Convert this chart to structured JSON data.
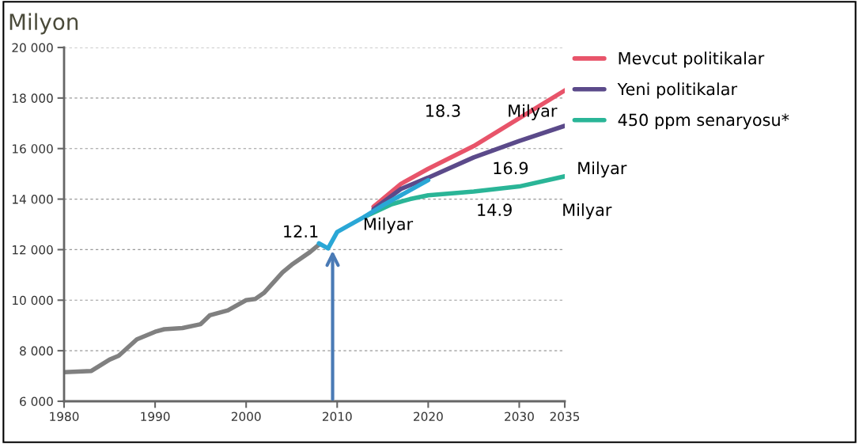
{
  "chart_data": {
    "type": "line",
    "ylabel": "Milyon",
    "xlim": [
      1980,
      2035
    ],
    "xticks": [
      1980,
      1990,
      2000,
      2010,
      2020,
      2030,
      2035
    ],
    "ylim": [
      6000,
      20000
    ],
    "yticks": [
      {
        "value": 6000,
        "label": "6 000"
      },
      {
        "value": 8000,
        "label": "8 000"
      },
      {
        "value": 10000,
        "label": "10 000"
      },
      {
        "value": 12000,
        "label": "12 000"
      },
      {
        "value": 14000,
        "label": "14 000"
      },
      {
        "value": 16000,
        "label": "16 000"
      },
      {
        "value": 18000,
        "label": "18 000"
      },
      {
        "value": 20000,
        "label": "20 000"
      }
    ],
    "grid": "y",
    "legend": "top right",
    "series": [
      {
        "color": "#808080",
        "x": [
          1980,
          1983,
          1985,
          1986,
          1988,
          1990,
          1991,
          1993,
          1995,
          1996,
          1998,
          2000,
          2001,
          2002,
          2004,
          2005,
          2007,
          2008
        ],
        "values": [
          7150,
          7200,
          7650,
          7800,
          8450,
          8750,
          8850,
          8900,
          9050,
          9400,
          9600,
          10000,
          10050,
          10300,
          11100,
          11400,
          11900,
          12200
        ]
      },
      {
        "name": "Mevcut politikalar",
        "color": "#e8546a",
        "x": [
          2014,
          2017,
          2020,
          2025,
          2030,
          2035
        ],
        "values": [
          13700,
          14600,
          15200,
          16100,
          17200,
          18300
        ]
      },
      {
        "name": "Yeni politikalar",
        "color": "#5b4a8a",
        "x": [
          2014,
          2017,
          2020,
          2025,
          2030,
          2035
        ],
        "values": [
          13600,
          14400,
          14850,
          15650,
          16300,
          16900
        ]
      },
      {
        "name": "450 ppm senaryosu*",
        "color": "#2ab597",
        "x": [
          2013,
          2016,
          2018,
          2020,
          2025,
          2030,
          2035
        ],
        "values": [
          13300,
          13800,
          14000,
          14150,
          14300,
          14500,
          14900
        ]
      },
      {
        "color": "#2aa7d6",
        "x": [
          2008,
          2009,
          2010,
          2011,
          2013,
          2015,
          2018,
          2020
        ],
        "values": [
          12250,
          12050,
          12700,
          12900,
          13300,
          13750,
          14350,
          14750
        ]
      }
    ],
    "annotations": [
      {
        "text": "12.1",
        "x": 2009,
        "y": 12050
      },
      "Milyar",
      "18.3",
      "Milyar",
      "16.9",
      "Milyar",
      "14.9",
      "Milyar"
    ]
  }
}
